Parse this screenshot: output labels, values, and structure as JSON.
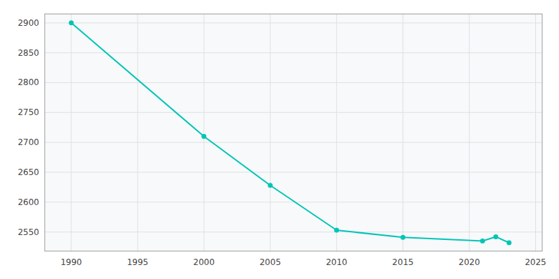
{
  "chart_data": {
    "type": "line",
    "x": [
      1990,
      2000,
      2005,
      2010,
      2015,
      2021,
      2022,
      2023
    ],
    "values": [
      2900,
      2710,
      2628,
      2553,
      2541,
      2535,
      2542,
      2532
    ],
    "color": "#00C5B5",
    "marker": "circle",
    "xlim": [
      1988,
      2025.5
    ],
    "ylim": [
      2518,
      2915
    ],
    "xticks": [
      1990,
      1995,
      2000,
      2005,
      2010,
      2015,
      2020,
      2025
    ],
    "yticks": [
      2550,
      2600,
      2650,
      2700,
      2750,
      2800,
      2850,
      2900
    ],
    "grid": true
  }
}
